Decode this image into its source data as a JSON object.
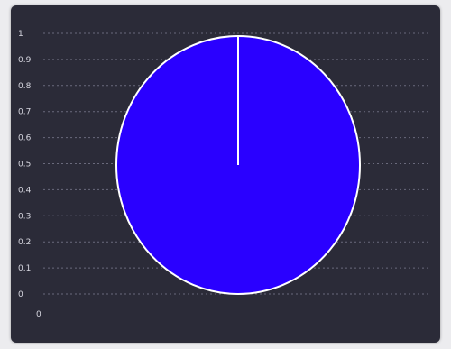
{
  "chart_data": {
    "type": "pie",
    "categories": [
      ""
    ],
    "values": [
      1
    ],
    "colors": [
      "#2a00ff"
    ],
    "slice_border_color": "#ffffff",
    "y_ticks": [
      "1",
      "0.9",
      "0.8",
      "0.7",
      "0.6",
      "0.5",
      "0.4",
      "0.3",
      "0.2",
      "0.1",
      "0"
    ],
    "x_ticks": [
      "0"
    ],
    "ylim": [
      0,
      1
    ],
    "grid": true,
    "legend": "none"
  },
  "colors": {
    "panel_background": "#2b2b38",
    "page_background": "#ececef",
    "tick_text": "#d7d7e0"
  }
}
